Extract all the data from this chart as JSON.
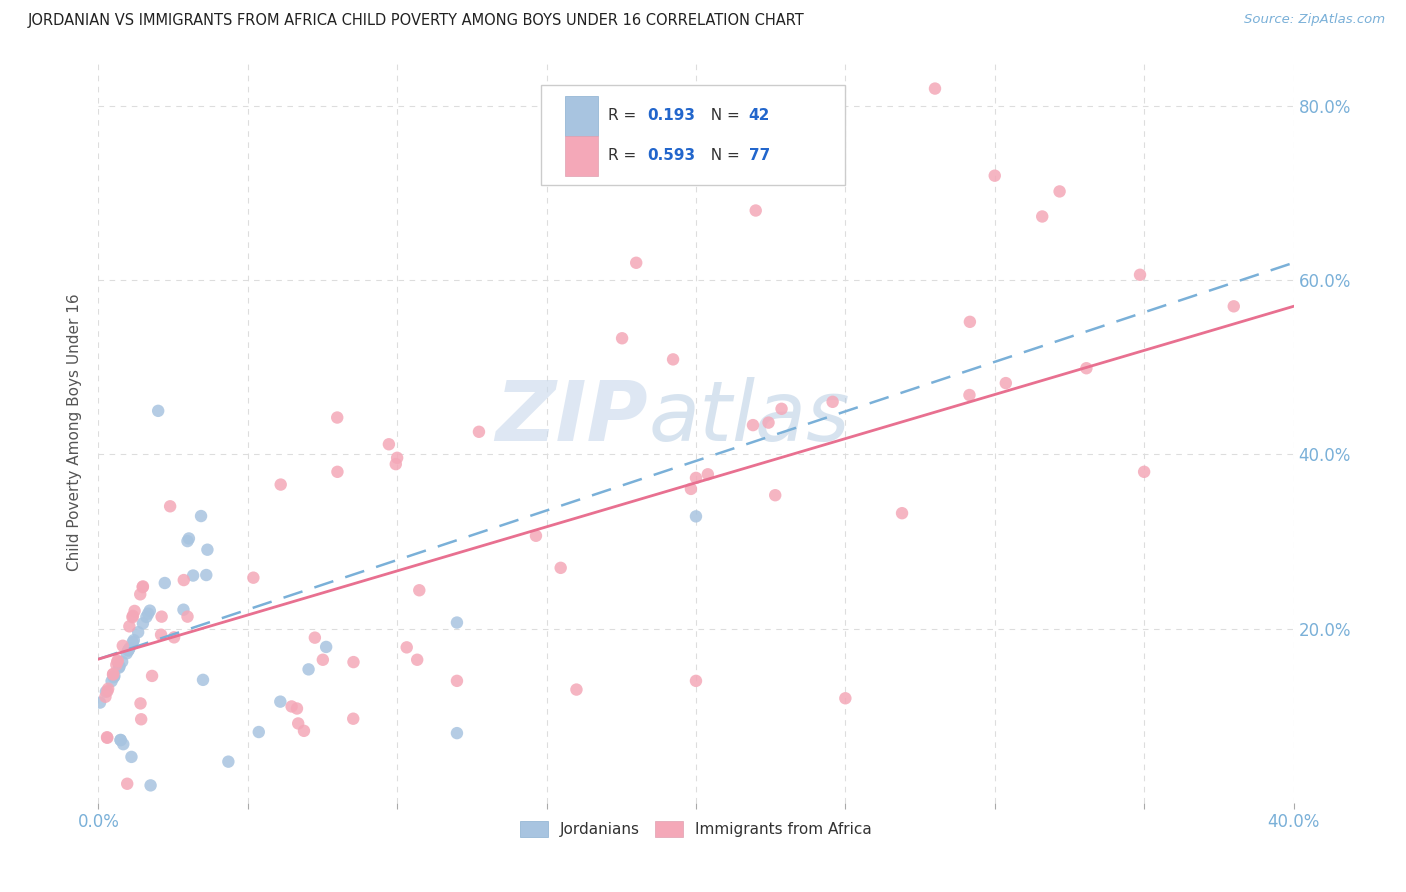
{
  "title": "JORDANIAN VS IMMIGRANTS FROM AFRICA CHILD POVERTY AMONG BOYS UNDER 16 CORRELATION CHART",
  "source": "Source: ZipAtlas.com",
  "ylabel": "Child Poverty Among Boys Under 16",
  "xlim": [
    0.0,
    0.4
  ],
  "ylim": [
    0.0,
    0.85
  ],
  "xtick_positions": [
    0.0,
    0.05,
    0.1,
    0.15,
    0.2,
    0.25,
    0.3,
    0.35,
    0.4
  ],
  "xtick_labels_shown": {
    "0.0": "0.0%",
    "0.40": "40.0%"
  },
  "ytick_positions": [
    0.2,
    0.4,
    0.6,
    0.8
  ],
  "ytick_labels": [
    "20.0%",
    "40.0%",
    "60.0%",
    "80.0%"
  ],
  "background_color": "#ffffff",
  "grid_color": "#dddddd",
  "jordanian_color": "#a8c4e0",
  "africa_color": "#f4a8b8",
  "line_blue_color": "#7ab0d8",
  "line_pink_color": "#e87090",
  "jordanian_R": "0.193",
  "jordanian_N": "42",
  "africa_R": "0.593",
  "africa_N": "77",
  "watermark_zip": "ZIP",
  "watermark_atlas": "atlas",
  "watermark_color_zip": "#c8d8ec",
  "watermark_color_atlas": "#b8cce0",
  "legend_label_1": "Jordanians",
  "legend_label_2": "Immigrants from Africa",
  "r_label_color": "#333333",
  "n_value_color": "#2266cc",
  "title_color": "#222222",
  "source_color": "#7ab0d8",
  "axis_label_color": "#7ab0d8",
  "tick_label_color": "#333333"
}
